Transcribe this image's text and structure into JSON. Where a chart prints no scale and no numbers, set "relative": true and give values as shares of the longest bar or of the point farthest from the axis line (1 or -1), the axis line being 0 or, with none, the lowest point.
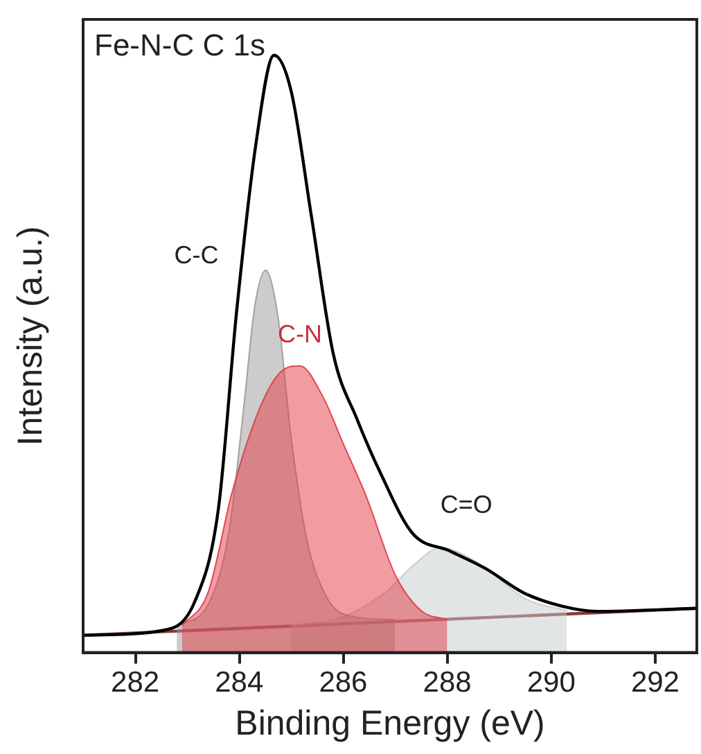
{
  "chart_data": {
    "type": "line",
    "title": "Fe-N-C C 1s",
    "xlabel": "Binding Energy (eV)",
    "ylabel": "Intensity (a.u.)",
    "relative": true,
    "xlim": [
      281,
      292.8
    ],
    "xticks": [
      282,
      284,
      286,
      288,
      290,
      292
    ],
    "grid": false,
    "legend": false,
    "marker": "none",
    "series": [
      {
        "type": "line",
        "color": "#8a3a3a",
        "x": [
          281,
          292.8
        ],
        "values": [
          0.029,
          0.074
        ]
      },
      {
        "type": "area",
        "name": "C=O",
        "color": "#c4cbcb",
        "x": [
          285.0,
          286.0,
          286.8,
          287.4,
          287.87,
          288.4,
          288.9,
          289.5,
          290.3
        ],
        "values": [
          0.045,
          0.06,
          0.1,
          0.15,
          0.176,
          0.16,
          0.13,
          0.09,
          0.07
        ]
      },
      {
        "type": "area",
        "name": "C-C",
        "color": "#9a9a9a",
        "x": [
          282.8,
          283.4,
          283.8,
          284.1,
          284.3,
          284.51,
          284.75,
          285.0,
          285.3,
          285.7,
          286.2,
          287.0
        ],
        "values": [
          0.045,
          0.08,
          0.2,
          0.42,
          0.58,
          0.64,
          0.56,
          0.36,
          0.19,
          0.09,
          0.06,
          0.055
        ]
      },
      {
        "type": "area",
        "name": "C-N",
        "color": "#e23a44",
        "x": [
          282.9,
          283.4,
          283.87,
          284.4,
          284.8,
          285.17,
          285.6,
          286.0,
          286.45,
          287.0,
          287.5,
          288.0
        ],
        "values": [
          0.045,
          0.1,
          0.27,
          0.41,
          0.47,
          0.48,
          0.43,
          0.35,
          0.26,
          0.13,
          0.07,
          0.055
        ]
      },
      {
        "type": "line",
        "color": "#000000",
        "x": [
          281,
          282.53,
          283.15,
          283.6,
          283.95,
          284.32,
          284.67,
          285.0,
          285.39,
          285.81,
          286.27,
          286.72,
          287.33,
          288.05,
          288.75,
          289.47,
          290.19,
          290.88,
          292.8
        ],
        "values": [
          0.029,
          0.037,
          0.086,
          0.24,
          0.57,
          0.85,
          1.0,
          0.94,
          0.73,
          0.5,
          0.39,
          0.3,
          0.2,
          0.17,
          0.14,
          0.1,
          0.078,
          0.069,
          0.074
        ]
      }
    ]
  }
}
